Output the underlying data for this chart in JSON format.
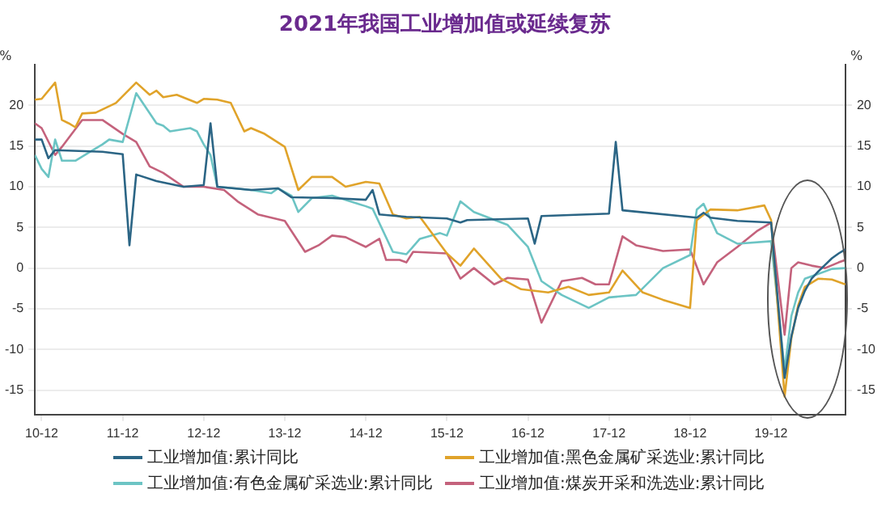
{
  "chart_data": {
    "type": "line",
    "title": "2021年我国工业增加值或延续复苏",
    "ylabel": "%",
    "y2label": "%",
    "xlim": [
      "2010-11",
      "2020-11"
    ],
    "xticks": [
      {
        "value": "2010-12",
        "label": "10-12"
      },
      {
        "value": "2011-12",
        "label": "11-12"
      },
      {
        "value": "2012-12",
        "label": "12-12"
      },
      {
        "value": "2013-12",
        "label": "13-12"
      },
      {
        "value": "2014-12",
        "label": "14-12"
      },
      {
        "value": "2015-12",
        "label": "15-12"
      },
      {
        "value": "2016-12",
        "label": "16-12"
      },
      {
        "value": "2017-12",
        "label": "17-12"
      },
      {
        "value": "2018-12",
        "label": "18-12"
      },
      {
        "value": "2019-12",
        "label": "19-12"
      }
    ],
    "ylim": [
      -18,
      25
    ],
    "yticks": [
      -15,
      -10,
      -5,
      0,
      5,
      10,
      15,
      20
    ],
    "y2lim": [
      -18,
      25
    ],
    "y2ticks": [
      -15,
      -10,
      -5,
      0,
      5,
      10,
      15,
      20
    ],
    "grid": "y",
    "legend": "bottom",
    "marker": "none",
    "line_style": "solid",
    "series": [
      {
        "name": "工业增加值:累计同比",
        "color": "#2b6585",
        "x": [
          "2010-11",
          "2010-12",
          "2011-01",
          "2011-02",
          "2011-09",
          "2011-12",
          "2012-01",
          "2012-02",
          "2012-05",
          "2012-09",
          "2012-12",
          "2013-01",
          "2013-02",
          "2013-07",
          "2013-11",
          "2014-01",
          "2014-07",
          "2014-12",
          "2015-01",
          "2015-02",
          "2015-06",
          "2015-12",
          "2016-02",
          "2016-03",
          "2016-12",
          "2017-01",
          "2017-02",
          "2017-12",
          "2018-01",
          "2018-02",
          "2019-01",
          "2019-02",
          "2019-03",
          "2019-07",
          "2019-12",
          "2020-02",
          "2020-03",
          "2020-04",
          "2020-05",
          "2020-06",
          "2020-07",
          "2020-08",
          "2020-09",
          "2020-10",
          "2020-11"
        ],
        "values": [
          15.8,
          15.8,
          13.5,
          14.5,
          14.3,
          14.0,
          2.8,
          11.5,
          10.7,
          10.0,
          10.2,
          17.8,
          10.0,
          9.6,
          9.8,
          8.7,
          8.6,
          8.4,
          9.6,
          6.6,
          6.3,
          6.1,
          5.6,
          5.9,
          6.1,
          3.0,
          6.4,
          6.7,
          15.5,
          7.1,
          6.2,
          6.8,
          6.2,
          5.8,
          5.6,
          -13.5,
          -8.4,
          -4.9,
          -2.8,
          -1.3,
          -0.4,
          0.4,
          1.2,
          1.8,
          2.3
        ]
      },
      {
        "name": "工业增加值:黑色金属矿采选业:累计同比",
        "color": "#e0a32a",
        "x": [
          "2010-11",
          "2010-12",
          "2011-02",
          "2011-03",
          "2011-04",
          "2011-05",
          "2011-06",
          "2011-08",
          "2011-11",
          "2012-02",
          "2012-04",
          "2012-05",
          "2012-06",
          "2012-08",
          "2012-11",
          "2012-12",
          "2013-02",
          "2013-04",
          "2013-06",
          "2013-07",
          "2013-09",
          "2013-12",
          "2014-02",
          "2014-04",
          "2014-07",
          "2014-09",
          "2014-12",
          "2015-02",
          "2015-04",
          "2015-06",
          "2015-08",
          "2015-12",
          "2016-02",
          "2016-04",
          "2016-08",
          "2016-11",
          "2017-03",
          "2017-06",
          "2017-09",
          "2017-12",
          "2018-02",
          "2018-05",
          "2018-08",
          "2018-12",
          "2019-01",
          "2019-03",
          "2019-07",
          "2019-11",
          "2019-12",
          "2020-02",
          "2020-03",
          "2020-04",
          "2020-05",
          "2020-07",
          "2020-09",
          "2020-11"
        ],
        "values": [
          20.7,
          20.8,
          22.8,
          18.2,
          17.8,
          17.3,
          19.0,
          19.1,
          20.3,
          22.8,
          21.3,
          21.8,
          21.0,
          21.3,
          20.3,
          20.8,
          20.7,
          20.3,
          16.8,
          17.2,
          16.5,
          14.9,
          9.6,
          11.2,
          11.2,
          10.0,
          10.6,
          10.4,
          6.6,
          6.1,
          6.3,
          1.8,
          0.3,
          2.4,
          -1.3,
          -2.6,
          -3.0,
          -2.3,
          -3.3,
          -3.0,
          -0.3,
          -3.0,
          -3.9,
          -4.9,
          5.9,
          7.2,
          7.1,
          7.7,
          5.9,
          -15.8,
          -8.6,
          -4.6,
          -2.3,
          -1.3,
          -1.4,
          -2.0
        ]
      },
      {
        "name": "工业增加值:有色金属矿采选业:累计同比",
        "color": "#6cc4c4",
        "x": [
          "2010-11",
          "2010-12",
          "2011-01",
          "2011-02",
          "2011-03",
          "2011-05",
          "2011-07",
          "2011-09",
          "2011-10",
          "2011-12",
          "2012-02",
          "2012-05",
          "2012-06",
          "2012-07",
          "2012-10",
          "2012-11",
          "2012-12",
          "2013-01",
          "2013-02",
          "2013-07",
          "2013-10",
          "2013-11",
          "2014-01",
          "2014-02",
          "2014-04",
          "2014-07",
          "2014-12",
          "2015-01",
          "2015-04",
          "2015-06",
          "2015-08",
          "2015-11",
          "2015-12",
          "2016-02",
          "2016-04",
          "2016-09",
          "2016-12",
          "2017-02",
          "2017-05",
          "2017-09",
          "2017-12",
          "2018-04",
          "2018-08",
          "2018-12",
          "2019-01",
          "2019-02",
          "2019-04",
          "2019-07",
          "2019-12",
          "2020-02",
          "2020-03",
          "2020-04",
          "2020-05",
          "2020-07",
          "2020-09",
          "2020-11"
        ],
        "values": [
          13.9,
          12.2,
          11.2,
          15.8,
          13.2,
          13.2,
          14.2,
          15.2,
          15.8,
          15.5,
          21.5,
          17.8,
          17.5,
          16.8,
          17.2,
          16.8,
          15.2,
          13.9,
          10.0,
          9.6,
          9.2,
          9.8,
          8.9,
          6.9,
          8.6,
          8.9,
          7.6,
          7.3,
          2.0,
          1.7,
          3.6,
          4.3,
          4.0,
          8.2,
          6.9,
          5.3,
          2.6,
          -1.6,
          -3.3,
          -4.9,
          -3.6,
          -3.3,
          0.0,
          1.6,
          7.2,
          7.9,
          4.3,
          3.0,
          3.3,
          -12.5,
          -5.9,
          -3.0,
          -1.3,
          -0.7,
          -0.1,
          0.0
        ]
      },
      {
        "name": "工业增加值:煤炭开采和洗选业:累计同比",
        "color": "#c4627c",
        "x": [
          "2010-11",
          "2010-12",
          "2011-02",
          "2011-03",
          "2011-06",
          "2011-09",
          "2011-12",
          "2012-02",
          "2012-04",
          "2012-06",
          "2012-09",
          "2012-12",
          "2013-03",
          "2013-05",
          "2013-08",
          "2013-12",
          "2014-03",
          "2014-05",
          "2014-07",
          "2014-09",
          "2014-12",
          "2015-02",
          "2015-03",
          "2015-05",
          "2015-06",
          "2015-07",
          "2015-12",
          "2016-02",
          "2016-04",
          "2016-07",
          "2016-09",
          "2016-12",
          "2017-02",
          "2017-05",
          "2017-08",
          "2017-10",
          "2017-12",
          "2018-02",
          "2018-04",
          "2018-08",
          "2018-12",
          "2019-02",
          "2019-04",
          "2019-07",
          "2019-10",
          "2019-12",
          "2020-02",
          "2020-03",
          "2020-04",
          "2020-06",
          "2020-08",
          "2020-10",
          "2020-11"
        ],
        "values": [
          17.8,
          17.2,
          13.9,
          14.9,
          18.2,
          18.2,
          16.5,
          15.5,
          12.5,
          11.7,
          10.0,
          10.0,
          9.6,
          8.2,
          6.6,
          5.8,
          2.0,
          2.8,
          4.0,
          3.8,
          2.6,
          3.6,
          1.0,
          1.0,
          0.7,
          2.0,
          1.8,
          -1.3,
          0.0,
          -2.0,
          -1.2,
          -1.4,
          -6.7,
          -1.6,
          -1.2,
          -2.0,
          -2.0,
          3.9,
          2.8,
          2.1,
          2.3,
          -2.0,
          0.7,
          2.6,
          4.6,
          5.6,
          -8.2,
          0.0,
          0.7,
          0.3,
          0.0,
          0.7,
          1.0
        ]
      }
    ]
  }
}
